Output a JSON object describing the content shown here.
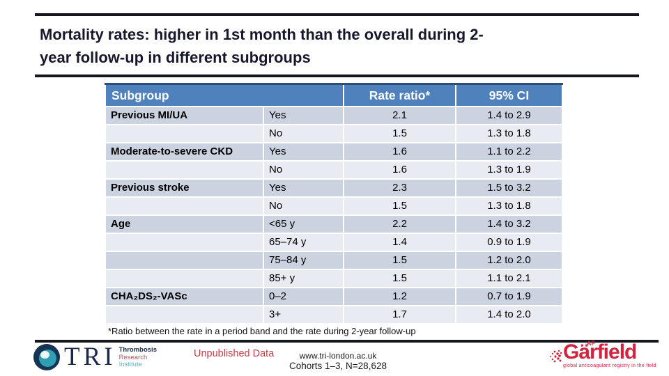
{
  "slide": {
    "title": "Mortality rates: higher in 1st month than the overall during 2-\nyear follow-up in different subgroups",
    "footnote": "*Ratio between the rate in a period band and the rate during 2-year follow-up"
  },
  "table": {
    "headers": [
      "Subgroup",
      "Rate ratio*",
      "95% CI"
    ],
    "rows": [
      {
        "subgroup": "Previous MI/UA",
        "level": "Yes",
        "rate_ratio": "2.1",
        "ci": "1.4 to 2.9"
      },
      {
        "subgroup": "",
        "level": "No",
        "rate_ratio": "1.5",
        "ci": "1.3 to 1.8"
      },
      {
        "subgroup": "Moderate-to-severe CKD",
        "level": "Yes",
        "rate_ratio": "1.6",
        "ci": "1.1 to 2.2"
      },
      {
        "subgroup": "",
        "level": "No",
        "rate_ratio": "1.6",
        "ci": "1.3 to 1.9"
      },
      {
        "subgroup": "Previous stroke",
        "level": "Yes",
        "rate_ratio": "2.3",
        "ci": "1.5 to 3.2"
      },
      {
        "subgroup": "",
        "level": "No",
        "rate_ratio": "1.5",
        "ci": "1.3 to 1.8"
      },
      {
        "subgroup": "Age",
        "level": "<65 y",
        "rate_ratio": "2.2",
        "ci": "1.4 to 3.2"
      },
      {
        "subgroup": "",
        "level": "65–74 y",
        "rate_ratio": "1.4",
        "ci": "0.9 to 1.9"
      },
      {
        "subgroup": "",
        "level": "75–84 y",
        "rate_ratio": "1.5",
        "ci": "1.2 to 2.0"
      },
      {
        "subgroup": "",
        "level": "85+ y",
        "rate_ratio": "1.5",
        "ci": "1.1 to 2.1"
      },
      {
        "subgroup": "CHA₂DS₂-VASc",
        "level": "0–2",
        "rate_ratio": "1.2",
        "ci": "0.7 to 1.9"
      },
      {
        "subgroup": "",
        "level": "3+",
        "rate_ratio": "1.7",
        "ci": "1.4 to 2.0"
      }
    ]
  },
  "footer": {
    "unpublished": "Unpublished Data",
    "website": "www.tri-london.ac.uk",
    "cohorts": "Cohorts 1–3, N=28,628",
    "tri_name": "TRI",
    "tri_words": [
      "Thrombosis",
      "Research",
      "Institute"
    ],
    "garfield_name": "Gärfield",
    "garfield_af": "AF",
    "garfield_tagline": "global anticoagulant registry in the field"
  },
  "colors": {
    "header_bg": "#4f81bd",
    "band_dark": "#cbd2e0",
    "band_light": "#e9ebf2",
    "title_text": "#17172b",
    "unpublished_red": "#bf3f45",
    "garfield_red": "#d0243f",
    "tri_navy": "#1c2a4a",
    "tri_teal": "#2f9fb3"
  }
}
